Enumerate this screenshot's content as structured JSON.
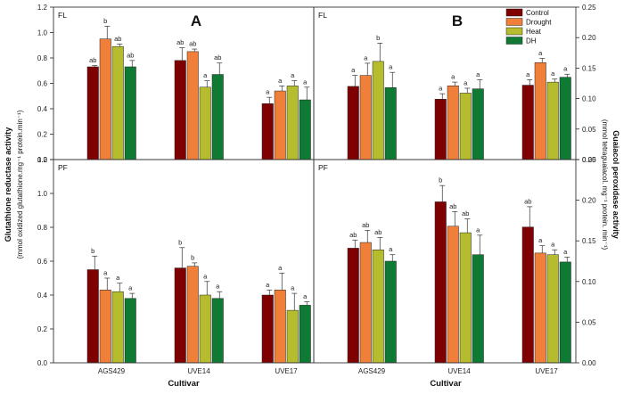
{
  "colors": {
    "Control": "#7f0000",
    "Drought": "#f07f3a",
    "Heat": "#b5bd2e",
    "DH": "#0f7a33"
  },
  "figure": {
    "left_y_title": "Glutathione reductase activity",
    "left_y_subtitle": "(mmol oxidized glutathione.mg⁻¹ protein.min⁻¹)",
    "right_y_title": "Guaiacol peroxidase activity",
    "right_y_subtitle": "(mmol tetraguaiacol. mg⁻¹ protein. min⁻¹)",
    "x_title": "Cultivar"
  },
  "chart_data": [
    {
      "type": "bar",
      "panel": "A",
      "tag": "FL",
      "categories": [
        "AGS429",
        "UVE14",
        "UVE17"
      ],
      "ylim": [
        0,
        1.2
      ],
      "yticks": [
        "0.0",
        "0.2",
        "0.4",
        "0.6",
        "0.8",
        "1.0",
        "1.2"
      ],
      "series": [
        {
          "name": "Control",
          "values": [
            0.73,
            0.78,
            0.44
          ],
          "errors": [
            0.01,
            0.1,
            0.05
          ],
          "letters": [
            "ab",
            "ab",
            "a"
          ]
        },
        {
          "name": "Drought",
          "values": [
            0.95,
            0.85,
            0.54
          ],
          "errors": [
            0.1,
            0.02,
            0.04
          ],
          "letters": [
            "b",
            "ab",
            "a"
          ]
        },
        {
          "name": "Heat",
          "values": [
            0.89,
            0.57,
            0.58
          ],
          "errors": [
            0.02,
            0.05,
            0.04
          ],
          "letters": [
            "ab",
            "a",
            "a"
          ]
        },
        {
          "name": "DH",
          "values": [
            0.73,
            0.67,
            0.47
          ],
          "errors": [
            0.05,
            0.09,
            0.1
          ],
          "letters": [
            "ab",
            "ab",
            "a"
          ]
        }
      ]
    },
    {
      "type": "bar",
      "panel": "B",
      "tag": "FL",
      "categories": [
        "AGS429",
        "UVE14",
        "UVE17"
      ],
      "ylim": [
        0,
        0.25
      ],
      "yticks": [
        "0.00",
        "0.05",
        "0.10",
        "0.15",
        "0.20",
        "0.25"
      ],
      "series": [
        {
          "name": "Control",
          "values": [
            0.12,
            0.099,
            0.122
          ],
          "errors": [
            0.018,
            0.009,
            0.009
          ],
          "letters": [
            "a",
            "a",
            "a"
          ]
        },
        {
          "name": "Drought",
          "values": [
            0.138,
            0.121,
            0.159
          ],
          "errors": [
            0.02,
            0.006,
            0.007
          ],
          "letters": [
            "a",
            "a",
            "a"
          ]
        },
        {
          "name": "Heat",
          "values": [
            0.161,
            0.109,
            0.127
          ],
          "errors": [
            0.03,
            0.008,
            0.005
          ],
          "letters": [
            "b",
            "a",
            "a"
          ]
        },
        {
          "name": "DH",
          "values": [
            0.118,
            0.116,
            0.135
          ],
          "errors": [
            0.025,
            0.015,
            0.005
          ],
          "letters": [
            "a",
            "a",
            "a"
          ]
        }
      ]
    },
    {
      "type": "bar",
      "panel": "",
      "tag": "PF",
      "categories": [
        "AGS429",
        "UVE14",
        "UVE17"
      ],
      "ylim": [
        0,
        1.2
      ],
      "yticks": [
        "0.0",
        "0.2",
        "0.4",
        "0.6",
        "0.8",
        "1.0",
        "1.2"
      ],
      "series": [
        {
          "name": "Control",
          "values": [
            0.55,
            0.56,
            0.4
          ],
          "errors": [
            0.08,
            0.12,
            0.03
          ],
          "letters": [
            "b",
            "b",
            "a"
          ]
        },
        {
          "name": "Drought",
          "values": [
            0.43,
            0.57,
            0.43
          ],
          "errors": [
            0.07,
            0.02,
            0.1
          ],
          "letters": [
            "a",
            "b",
            "a"
          ]
        },
        {
          "name": "Heat",
          "values": [
            0.42,
            0.4,
            0.31
          ],
          "errors": [
            0.05,
            0.08,
            0.1
          ],
          "letters": [
            "a",
            "a",
            "a"
          ]
        },
        {
          "name": "DH",
          "values": [
            0.38,
            0.38,
            0.34
          ],
          "errors": [
            0.03,
            0.04,
            0.02
          ],
          "letters": [
            "a",
            "a",
            "a"
          ]
        }
      ]
    },
    {
      "type": "bar",
      "panel": "",
      "tag": "PF",
      "categories": [
        "AGS429",
        "UVE14",
        "UVE17"
      ],
      "ylim": [
        0,
        0.25
      ],
      "yticks": [
        "0.00",
        "0.05",
        "0.10",
        "0.15",
        "0.20",
        "0.25"
      ],
      "series": [
        {
          "name": "Control",
          "values": [
            0.141,
            0.198,
            0.167
          ],
          "errors": [
            0.01,
            0.02,
            0.025
          ],
          "letters": [
            "ab",
            "b",
            "ab"
          ]
        },
        {
          "name": "Drought",
          "values": [
            0.148,
            0.168,
            0.135
          ],
          "errors": [
            0.015,
            0.018,
            0.009
          ],
          "letters": [
            "ab",
            "ab",
            "a"
          ]
        },
        {
          "name": "Heat",
          "values": [
            0.139,
            0.16,
            0.133
          ],
          "errors": [
            0.015,
            0.017,
            0.006
          ],
          "letters": [
            "ab",
            "ab",
            "a"
          ]
        },
        {
          "name": "DH",
          "values": [
            0.125,
            0.133,
            0.124
          ],
          "errors": [
            0.008,
            0.024,
            0.006
          ],
          "letters": [
            "a",
            "a",
            "a"
          ]
        }
      ]
    }
  ]
}
